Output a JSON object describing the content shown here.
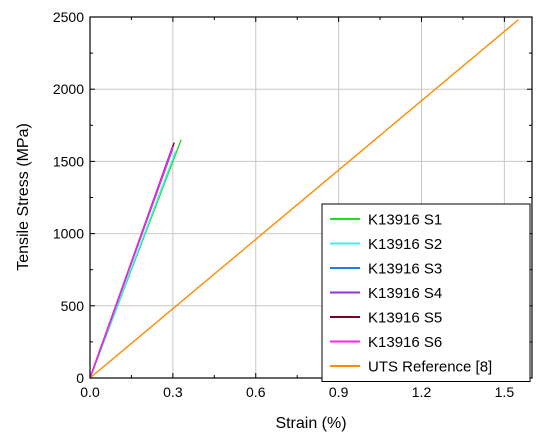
{
  "chart_data": {
    "type": "line",
    "title": "",
    "xlabel": "Strain (%)",
    "ylabel": "Tensile Stress (MPa)",
    "xlim": [
      0,
      1.6
    ],
    "ylim": [
      0,
      2500
    ],
    "x_ticks": [
      0.0,
      0.3,
      0.6,
      0.9,
      1.2,
      1.5
    ],
    "x_tick_labels": [
      "0.0",
      "0.3",
      "0.6",
      "0.9",
      "1.2",
      "1.5"
    ],
    "y_ticks": [
      0,
      500,
      1000,
      1500,
      2000,
      2500
    ],
    "y_tick_labels": [
      "0",
      "500",
      "1000",
      "1500",
      "2000",
      "2500"
    ],
    "grid": true,
    "legend_position": "bottom-right",
    "series": [
      {
        "name": "K13916 S1",
        "color": "#22dd22",
        "x": [
          0,
          0.33
        ],
        "y": [
          0,
          1650
        ]
      },
      {
        "name": "K13916 S2",
        "color": "#44eeee",
        "x": [
          0,
          0.31
        ],
        "y": [
          0,
          1570
        ]
      },
      {
        "name": "K13916 S3",
        "color": "#1c7fe0",
        "x": [
          0,
          0.3
        ],
        "y": [
          0,
          1590
        ]
      },
      {
        "name": "K13916 S4",
        "color": "#9933cc",
        "x": [
          0,
          0.3
        ],
        "y": [
          0,
          1610
        ]
      },
      {
        "name": "K13916 S5",
        "color": "#800020",
        "x": [
          0,
          0.305
        ],
        "y": [
          0,
          1630
        ]
      },
      {
        "name": "K13916 S6",
        "color": "#ff22ee",
        "x": [
          0,
          0.3
        ],
        "y": [
          0,
          1600
        ]
      },
      {
        "name": "UTS Reference [8]",
        "color": "#ff8c00",
        "x": [
          0,
          1.55
        ],
        "y": [
          0,
          2480
        ]
      }
    ]
  }
}
